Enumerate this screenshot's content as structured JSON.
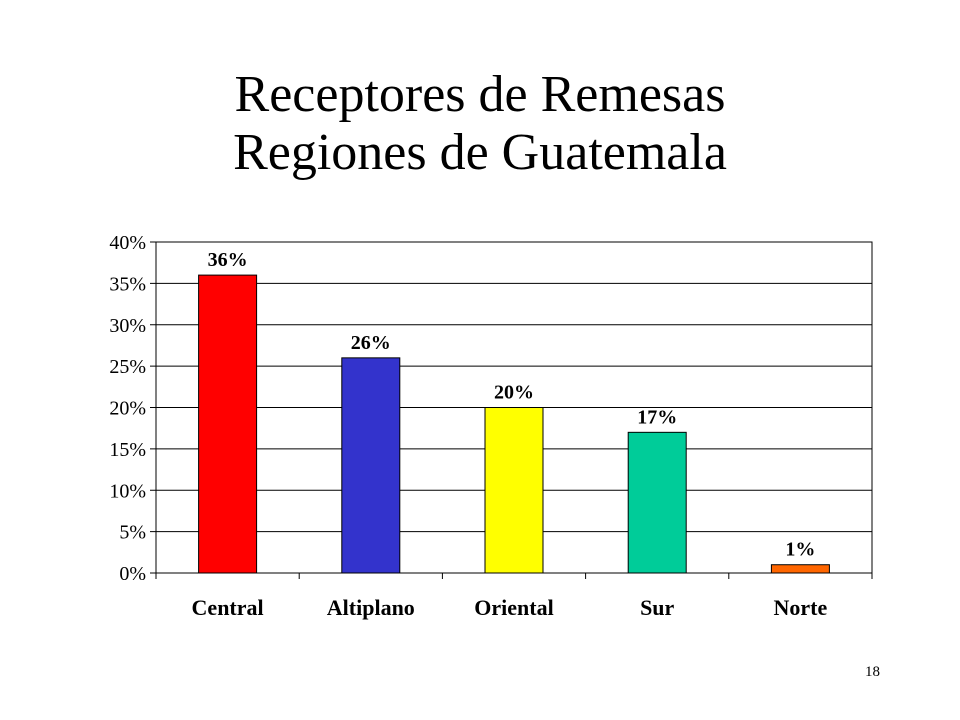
{
  "slide": {
    "title_line1": "Receptores de Remesas",
    "title_line2": "Regiones de Guatemala",
    "page_number": "18"
  },
  "chart_data": {
    "type": "bar",
    "categories": [
      "Central",
      "Altiplano",
      "Oriental",
      "Sur",
      "Norte"
    ],
    "values": [
      36,
      26,
      20,
      17,
      1
    ],
    "data_labels": [
      "36%",
      "26%",
      "20%",
      "17%",
      "1%"
    ],
    "bar_colors": [
      "#ff0000",
      "#3333cc",
      "#ffff00",
      "#00cc99",
      "#ff6600"
    ],
    "ylim": [
      0,
      40
    ],
    "yticks": [
      0,
      5,
      10,
      15,
      20,
      25,
      30,
      35,
      40
    ],
    "ytick_labels": [
      "0%",
      "5%",
      "10%",
      "15%",
      "20%",
      "25%",
      "30%",
      "35%",
      "40%"
    ],
    "grid": true,
    "legend": "none",
    "title": "",
    "xlabel": "",
    "ylabel": ""
  }
}
